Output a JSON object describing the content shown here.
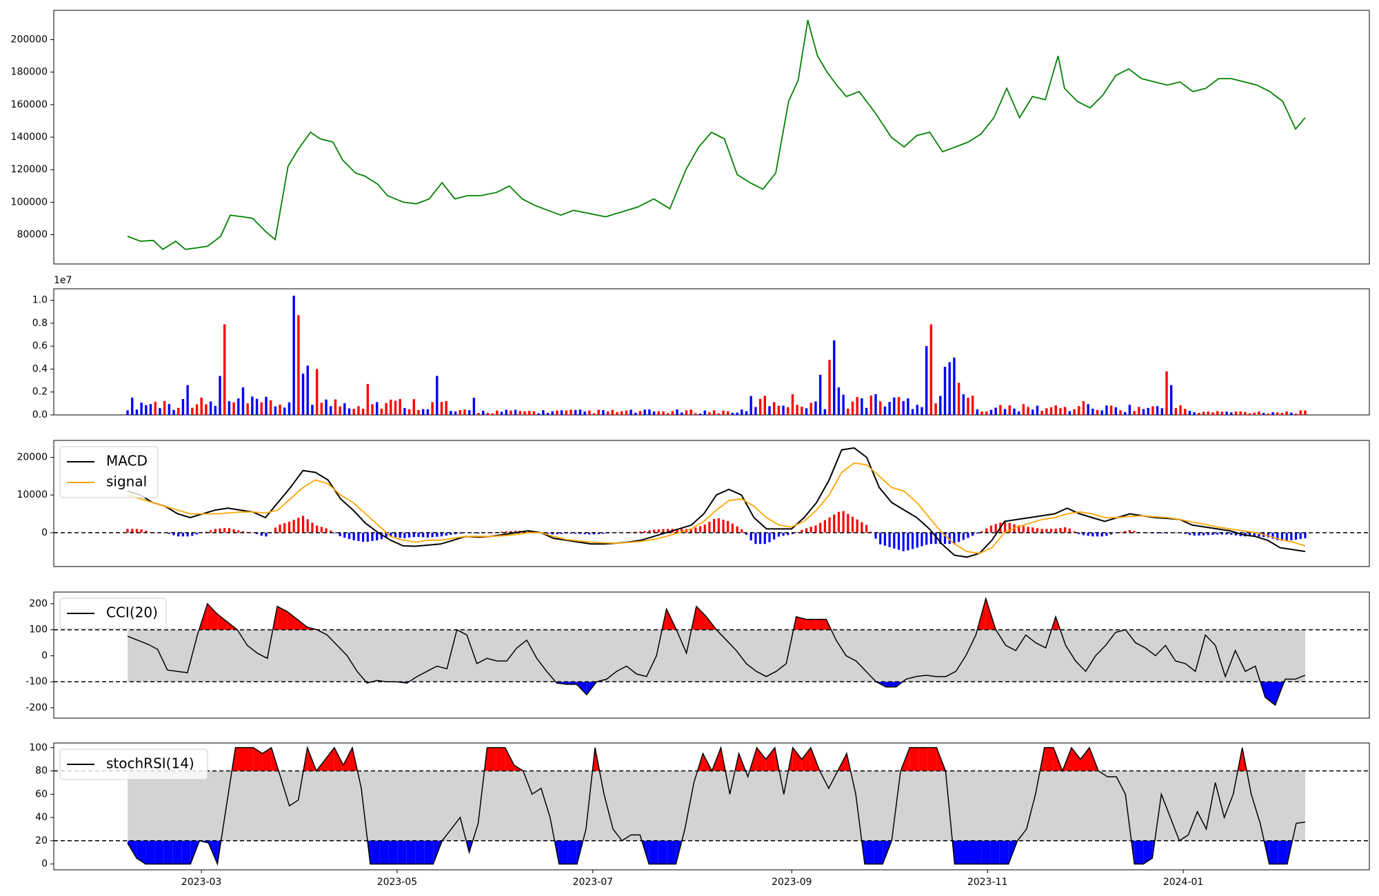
{
  "chart_data": [
    {
      "type": "line",
      "panel": "price",
      "color": "#008000",
      "ylim": [
        62000,
        218000
      ],
      "y_ticks": [
        80000,
        100000,
        120000,
        140000,
        160000,
        180000,
        200000
      ],
      "x_ticks": [
        "2023-03",
        "2023-05",
        "2023-07",
        "2023-09",
        "2023-11",
        "2024-01"
      ],
      "series": [
        {
          "x": [
            "2023-02-06",
            "2023-02-10",
            "2023-02-14",
            "2023-02-17",
            "2023-02-21",
            "2023-02-24",
            "2023-02-28",
            "2023-03-03",
            "2023-03-07",
            "2023-03-10",
            "2023-03-14",
            "2023-03-17",
            "2023-03-21",
            "2023-03-24",
            "2023-03-28",
            "2023-03-31",
            "2023-04-04",
            "2023-04-07",
            "2023-04-11",
            "2023-04-14",
            "2023-04-18",
            "2023-04-21",
            "2023-04-25",
            "2023-04-28",
            "2023-05-03",
            "2023-05-07",
            "2023-05-11",
            "2023-05-15",
            "2023-05-19",
            "2023-05-23",
            "2023-05-27",
            "2023-06-01",
            "2023-06-05",
            "2023-06-09",
            "2023-06-13",
            "2023-06-17",
            "2023-06-21",
            "2023-06-25",
            "2023-06-30",
            "2023-07-05",
            "2023-07-10",
            "2023-07-15",
            "2023-07-20",
            "2023-07-25",
            "2023-07-30",
            "2023-08-03",
            "2023-08-07",
            "2023-08-11",
            "2023-08-15",
            "2023-08-19",
            "2023-08-23",
            "2023-08-27",
            "2023-08-31",
            "2023-09-03",
            "2023-09-06",
            "2023-09-09",
            "2023-09-12",
            "2023-09-15",
            "2023-09-18",
            "2023-09-22",
            "2023-09-27",
            "2023-10-02",
            "2023-10-06",
            "2023-10-10",
            "2023-10-14",
            "2023-10-18",
            "2023-10-22",
            "2023-10-26",
            "2023-10-30",
            "2023-11-03",
            "2023-11-07",
            "2023-11-11",
            "2023-11-15",
            "2023-11-19",
            "2023-11-23",
            "2023-11-25",
            "2023-11-29",
            "2023-12-03",
            "2023-12-07",
            "2023-12-11",
            "2023-12-15",
            "2023-12-19",
            "2023-12-23",
            "2023-12-27",
            "2023-12-31",
            "2024-01-04",
            "2024-01-08",
            "2024-01-12",
            "2024-01-16",
            "2024-01-20",
            "2024-01-24",
            "2024-01-28",
            "2024-02-01",
            "2024-02-05",
            "2024-02-08"
          ],
          "y": [
            79000,
            76000,
            76500,
            71000,
            76000,
            71000,
            72000,
            73000,
            79000,
            92000,
            91000,
            90000,
            82000,
            77000,
            122000,
            132000,
            143000,
            139000,
            137000,
            126000,
            118000,
            116000,
            111000,
            104000,
            100000,
            99000,
            102000,
            112000,
            102000,
            104000,
            104000,
            106000,
            110000,
            102000,
            98000,
            95000,
            92000,
            95000,
            93000,
            91000,
            94000,
            97000,
            102000,
            96000,
            120000,
            134000,
            143000,
            139000,
            117000,
            112000,
            108000,
            118000,
            162000,
            175000,
            212000,
            190000,
            180000,
            172000,
            165000,
            168000,
            155000,
            140000,
            134000,
            141000,
            143000,
            131000,
            134000,
            137000,
            142000,
            152000,
            170000,
            152000,
            165000,
            163000,
            190000,
            170000,
            162000,
            158000,
            166000,
            178000,
            182000,
            176000,
            174000,
            172000,
            174000,
            168000,
            170000,
            176000,
            176000,
            174000,
            172000,
            168000,
            162000,
            145000,
            152000
          ]
        }
      ]
    },
    {
      "type": "bar",
      "panel": "volume",
      "offset_text": "1e7",
      "ylim": [
        0,
        1.1
      ],
      "y_ticks": [
        "0.0",
        "0.2",
        "0.4",
        "0.6",
        "0.8",
        "1.0"
      ],
      "colors": {
        "up": "#ff0000",
        "down": "#0000ff"
      }
    },
    {
      "type": "line",
      "panel": "macd",
      "ylim": [
        -9000,
        24500
      ],
      "y_ticks": [
        0,
        10000,
        20000
      ],
      "zero_line": 0,
      "legend": [
        "MACD",
        "signal"
      ],
      "series": [
        {
          "name": "MACD",
          "color": "#000000",
          "values": [
            11000,
            10000,
            8000,
            7000,
            5000,
            4000,
            5000,
            6000,
            6500,
            6000,
            5500,
            4000,
            8000,
            12000,
            16500,
            16000,
            14000,
            9000,
            6000,
            2500,
            0,
            -2000,
            -3500,
            -3600,
            -3300,
            -3000,
            -2000,
            -1000,
            -1200,
            -1000,
            -500,
            0,
            500,
            0,
            -1500,
            -2000,
            -2500,
            -3000,
            -3000,
            -2800,
            -2500,
            -2000,
            -1000,
            0,
            1000,
            2000,
            5000,
            10000,
            11500,
            10000,
            4000,
            1000,
            1000,
            1000,
            4000,
            8000,
            14000,
            22000,
            22500,
            20000,
            12000,
            8000,
            6000,
            4000,
            1000,
            -3000,
            -6000,
            -6500,
            -5500,
            -2000,
            3000,
            3500,
            4000,
            4500,
            5000,
            6500,
            5000,
            4000,
            3000,
            4000,
            5000,
            4500,
            4000,
            3800,
            3500,
            2000,
            1500,
            1000,
            500,
            -500,
            -1000,
            -2000,
            -4000,
            -4500,
            -5000
          ]
        },
        {
          "name": "signal",
          "color": "#ffa500",
          "values": [
            10000,
            9000,
            8000,
            7000,
            6000,
            5000,
            5000,
            5000,
            5200,
            5500,
            5500,
            5200,
            6000,
            9000,
            12000,
            14000,
            13000,
            10000,
            8000,
            5000,
            2000,
            -1000,
            -2000,
            -2500,
            -2000,
            -2000,
            -1500,
            -1000,
            -1000,
            -1000,
            -800,
            -500,
            0,
            0,
            -1000,
            -1800,
            -2200,
            -2500,
            -2700,
            -2800,
            -2600,
            -2300,
            -1800,
            -1000,
            0,
            1000,
            3000,
            6000,
            8500,
            9000,
            7000,
            4000,
            2000,
            1500,
            3000,
            6000,
            10000,
            16000,
            18500,
            18000,
            15000,
            12000,
            11000,
            8000,
            4000,
            0,
            -3000,
            -5000,
            -5500,
            -4000,
            0,
            1500,
            2500,
            3500,
            4000,
            5000,
            5500,
            5000,
            4000,
            4000,
            4300,
            4500,
            4200,
            4000,
            3500,
            2800,
            2200,
            1500,
            1000,
            500,
            0,
            -800,
            -1800,
            -2500,
            -3500
          ]
        }
      ],
      "hist_colors": {
        "positive": "#ff0000",
        "negative": "#0000ff"
      }
    },
    {
      "type": "area",
      "panel": "cci",
      "ylim": [
        -240,
        245
      ],
      "y_ticks": [
        -200,
        -100,
        0,
        100,
        200
      ],
      "bands": [
        -100,
        100
      ],
      "band_fill": "#d3d3d3",
      "over_fill": "#ff0000",
      "under_fill": "#0000ff",
      "legend": [
        "CCI(20)"
      ],
      "series": [
        {
          "name": "CCI(20)",
          "color": "#000000",
          "values": [
            75,
            60,
            45,
            25,
            -55,
            -60,
            -65,
            80,
            200,
            160,
            130,
            100,
            40,
            10,
            -10,
            190,
            170,
            140,
            110,
            100,
            80,
            40,
            0,
            -60,
            -105,
            -95,
            -100,
            -100,
            -105,
            -80,
            -60,
            -40,
            -50,
            100,
            80,
            -30,
            -10,
            -20,
            -20,
            30,
            60,
            -10,
            -60,
            -105,
            -110,
            -110,
            -150,
            -100,
            -90,
            -60,
            -40,
            -70,
            -80,
            0,
            180,
            100,
            10,
            190,
            150,
            100,
            60,
            20,
            -30,
            -60,
            -80,
            -60,
            -30,
            150,
            140,
            140,
            140,
            60,
            0,
            -20,
            -60,
            -100,
            -120,
            -120,
            -90,
            -80,
            -75,
            -80,
            -80,
            -60,
            0,
            80,
            220,
            100,
            40,
            20,
            80,
            50,
            30,
            150,
            40,
            -20,
            -60,
            0,
            40,
            90,
            100,
            50,
            30,
            0,
            40,
            -20,
            -30,
            -60,
            80,
            40,
            -80,
            20,
            -60,
            -40,
            -160,
            -190,
            -90,
            -90,
            -75
          ]
        }
      ]
    },
    {
      "type": "area",
      "panel": "stochrsi",
      "ylim": [
        -5,
        104
      ],
      "y_ticks": [
        0,
        20,
        40,
        60,
        80,
        100
      ],
      "bands": [
        20,
        80
      ],
      "band_fill": "#d3d3d3",
      "over_fill": "#ff0000",
      "under_fill": "#0000ff",
      "legend": [
        "stochRSI(14)"
      ],
      "series": [
        {
          "name": "stochRSI(14)",
          "color": "#000000",
          "values": [
            18,
            5,
            0,
            0,
            0,
            0,
            0,
            0,
            20,
            18,
            0,
            50,
            100,
            100,
            100,
            95,
            100,
            75,
            50,
            55,
            100,
            80,
            90,
            100,
            85,
            100,
            65,
            0,
            0,
            0,
            0,
            0,
            0,
            0,
            0,
            20,
            30,
            40,
            10,
            35,
            100,
            100,
            100,
            85,
            80,
            60,
            65,
            40,
            0,
            0,
            0,
            30,
            100,
            60,
            30,
            20,
            25,
            25,
            0,
            0,
            0,
            0,
            30,
            70,
            95,
            80,
            100,
            60,
            95,
            75,
            100,
            90,
            100,
            60,
            100,
            90,
            100,
            80,
            65,
            80,
            95,
            60,
            0,
            0,
            0,
            20,
            80,
            100,
            100,
            100,
            100,
            80,
            0,
            0,
            0,
            0,
            0,
            0,
            0,
            20,
            30,
            60,
            100,
            100,
            80,
            100,
            90,
            100,
            80,
            75,
            75,
            60,
            0,
            0,
            5,
            60,
            40,
            20,
            25,
            45,
            30,
            70,
            40,
            60,
            100,
            60,
            35,
            0,
            0,
            0,
            35,
            36
          ]
        }
      ]
    }
  ]
}
